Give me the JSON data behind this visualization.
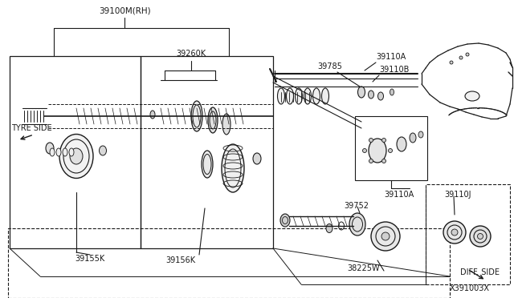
{
  "bg_color": "#ffffff",
  "line_color": "#1a1a1a",
  "labels": {
    "39100M_RH": "39100M(RH)",
    "39260K": "39260K",
    "TYRE_SIDE": "TYRE SIDE",
    "39155K": "39155K",
    "39156K": "39156K",
    "38225W": "38225W",
    "39752": "39752",
    "39785": "39785",
    "39110A_top": "39110A",
    "39110B": "39110B",
    "39110A_bot": "39110A",
    "39110J": "39110J",
    "DIFF_SIDE": "DIFF. SIDE",
    "X391003X": "X391003X"
  }
}
